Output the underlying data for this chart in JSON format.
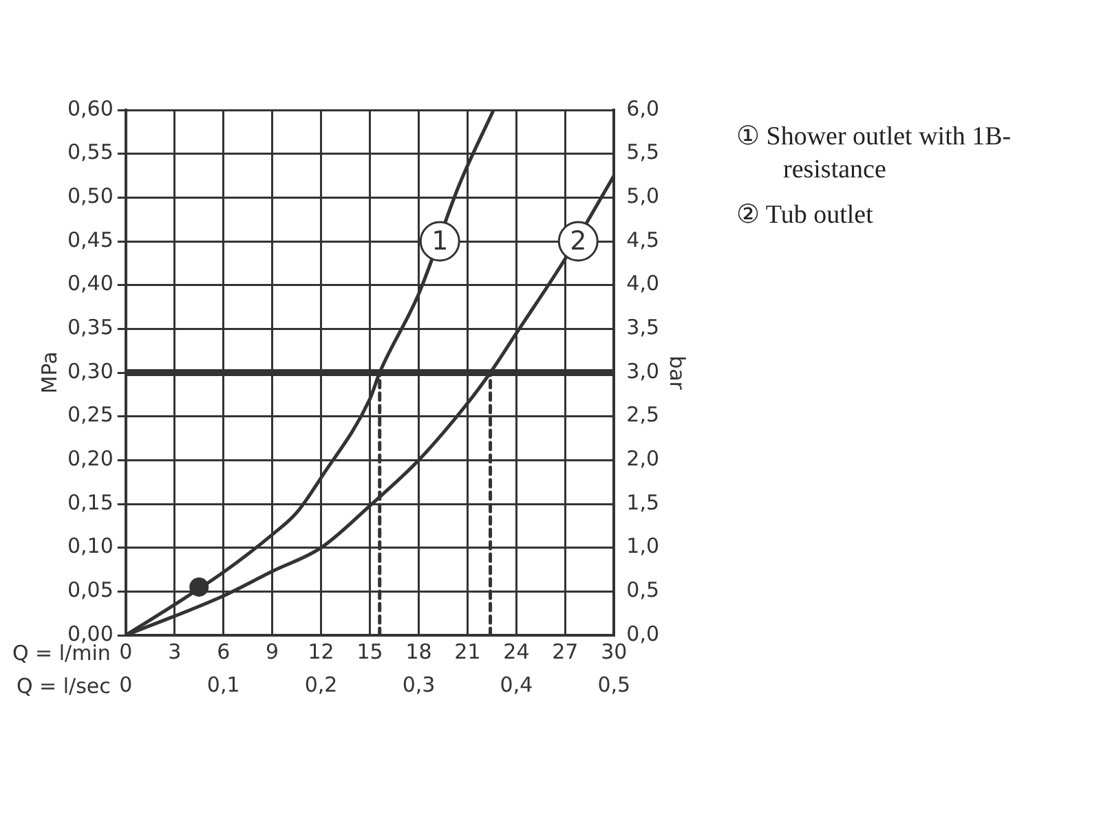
{
  "chart_data": {
    "type": "line",
    "xlabel": "Q = l/min",
    "x2label": "Q = l/sec",
    "ylabel": "MPa",
    "y2label": "bar",
    "xlim": [
      0,
      30
    ],
    "xticks": [
      0,
      3,
      6,
      9,
      12,
      15,
      18,
      21,
      24,
      27,
      30
    ],
    "x2lim": [
      0,
      0.5
    ],
    "x2ticks": [
      {
        "value": 0,
        "label": "0"
      },
      {
        "value": 0.1,
        "label": "0,1"
      },
      {
        "value": 0.2,
        "label": "0,2"
      },
      {
        "value": 0.3,
        "label": "0,3"
      },
      {
        "value": 0.4,
        "label": "0,4"
      },
      {
        "value": 0.5,
        "label": "0,5"
      }
    ],
    "ylim": [
      0,
      0.6
    ],
    "yticks": [
      {
        "value": 0,
        "label": "0,00"
      },
      {
        "value": 0.05,
        "label": "0,05"
      },
      {
        "value": 0.1,
        "label": "0,10"
      },
      {
        "value": 0.15,
        "label": "0,15"
      },
      {
        "value": 0.2,
        "label": "0,20"
      },
      {
        "value": 0.25,
        "label": "0,25"
      },
      {
        "value": 0.3,
        "label": "0,30"
      },
      {
        "value": 0.35,
        "label": "0,35"
      },
      {
        "value": 0.4,
        "label": "0,40"
      },
      {
        "value": 0.45,
        "label": "0,45"
      },
      {
        "value": 0.5,
        "label": "0,50"
      },
      {
        "value": 0.55,
        "label": "0,55"
      },
      {
        "value": 0.6,
        "label": "0,60"
      }
    ],
    "y2lim": [
      0,
      6
    ],
    "y2ticks": [
      {
        "value": 0,
        "label": "0,0"
      },
      {
        "value": 0.5,
        "label": "0,5"
      },
      {
        "value": 1,
        "label": "1,0"
      },
      {
        "value": 1.5,
        "label": "1,5"
      },
      {
        "value": 2,
        "label": "2,0"
      },
      {
        "value": 2.5,
        "label": "2,5"
      },
      {
        "value": 3,
        "label": "3,0"
      },
      {
        "value": 3.5,
        "label": "3,5"
      },
      {
        "value": 4,
        "label": "4,0"
      },
      {
        "value": 4.5,
        "label": "4,5"
      },
      {
        "value": 5,
        "label": "5,0"
      },
      {
        "value": 5.5,
        "label": "5,5"
      },
      {
        "value": 6,
        "label": "6,0"
      }
    ],
    "grid": true,
    "legend": "right",
    "marker": "none",
    "line_style": "solid",
    "series": [
      {
        "name": "① Shower outlet with 1B-resistance",
        "color": "#333333",
        "x": [
          0,
          3,
          6,
          9,
          10.5,
          12,
          15,
          15.6,
          18,
          20.5,
          22.6
        ],
        "values": [
          0,
          0.035,
          0.072,
          0.115,
          0.14,
          0.18,
          0.27,
          0.3,
          0.39,
          0.515,
          0.6
        ]
      },
      {
        "name": "② Tub outlet",
        "color": "#333333",
        "x": [
          0,
          6,
          9,
          12,
          15,
          18,
          21,
          22.4,
          24,
          27,
          30
        ],
        "values": [
          0,
          0.045,
          0.073,
          0.1,
          0.148,
          0.2,
          0.265,
          0.3,
          0.345,
          0.43,
          0.525
        ]
      },
      {
        "type": "line",
        "line_style": "dashed",
        "color": "#333333",
        "x": [
          15.6,
          15.6
        ],
        "values": [
          0,
          0.3
        ]
      },
      {
        "type": "line",
        "line_style": "dashed",
        "color": "#333333",
        "x": [
          22.4,
          22.4
        ],
        "values": [
          0,
          0.3
        ]
      },
      {
        "type": "scatter",
        "marker": "circle",
        "color": "#333333",
        "x": [
          4.5
        ],
        "values": [
          0.055
        ]
      }
    ],
    "ref_lines": [
      {
        "axis": "y",
        "value": 0.3,
        "color": "#333333"
      }
    ],
    "annotations": [
      {
        "text": "1",
        "x": 19.3,
        "y": 0.45
      },
      {
        "text": "2",
        "x": 27.8,
        "y": 0.45
      }
    ]
  }
}
